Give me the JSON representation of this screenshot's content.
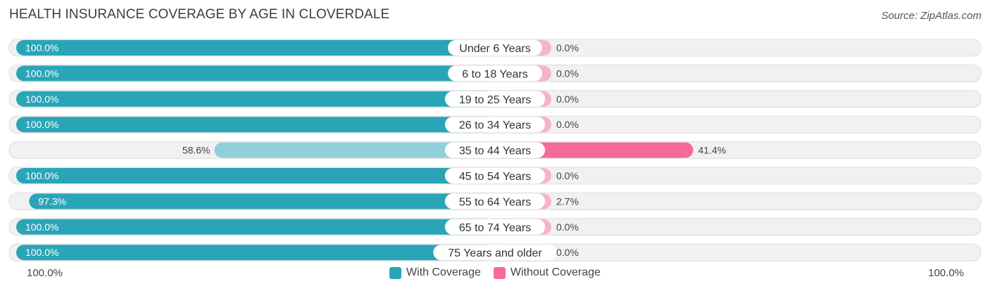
{
  "header": {
    "title": "HEALTH INSURANCE COVERAGE BY AGE IN CLOVERDALE",
    "source": "Source: ZipAtlas.com"
  },
  "axis": {
    "left_label": "100.0%",
    "right_label": "100.0%"
  },
  "legend": {
    "with_label": "With Coverage",
    "without_label": "Without Coverage"
  },
  "colors": {
    "with_strong": "#2aa5b8",
    "with_light": "#8fd0da",
    "without_strong": "#f36b98",
    "without_light": "#f7b3c9",
    "track": "#f1f1f1",
    "track_border": "#dddddd"
  },
  "chart_data": {
    "type": "bar",
    "orientation": "horizontal-diverging",
    "title": "HEALTH INSURANCE COVERAGE BY AGE IN CLOVERDALE",
    "categories": [
      "Under 6 Years",
      "6 to 18 Years",
      "19 to 25 Years",
      "26 to 34 Years",
      "35 to 44 Years",
      "45 to 54 Years",
      "55 to 64 Years",
      "65 to 74 Years",
      "75 Years and older"
    ],
    "series": [
      {
        "name": "With Coverage",
        "values": [
          100.0,
          100.0,
          100.0,
          100.0,
          58.6,
          100.0,
          97.3,
          100.0,
          100.0
        ],
        "labels": [
          "100.0%",
          "100.0%",
          "100.0%",
          "100.0%",
          "58.6%",
          "100.0%",
          "97.3%",
          "100.0%",
          "100.0%"
        ]
      },
      {
        "name": "Without Coverage",
        "values": [
          0.0,
          0.0,
          0.0,
          0.0,
          41.4,
          0.0,
          2.7,
          0.0,
          0.0
        ],
        "labels": [
          "0.0%",
          "0.0%",
          "0.0%",
          "0.0%",
          "41.4%",
          "0.0%",
          "2.7%",
          "0.0%",
          "0.0%"
        ]
      }
    ],
    "xlim": [
      0,
      100
    ],
    "legend_position": "bottom-center"
  }
}
